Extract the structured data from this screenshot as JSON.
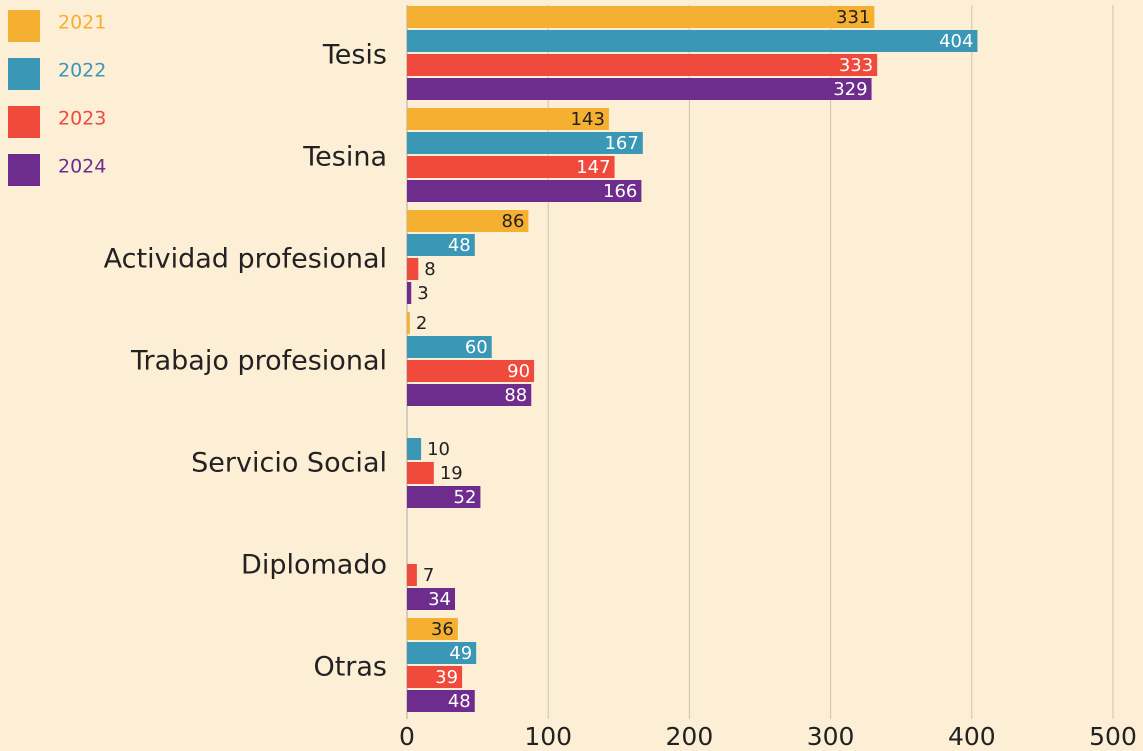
{
  "chart_data": {
    "type": "bar",
    "orientation": "horizontal",
    "categories": [
      "Tesis",
      "Tesina",
      "Actividad profesional",
      "Trabajo profesional",
      "Servicio Social",
      "Diplomado",
      "Otras"
    ],
    "series": [
      {
        "name": "2021",
        "color": "#f5b031",
        "values": [
          331,
          143,
          86,
          2,
          null,
          null,
          36
        ]
      },
      {
        "name": "2022",
        "color": "#3a97b6",
        "values": [
          404,
          167,
          48,
          60,
          10,
          null,
          49
        ]
      },
      {
        "name": "2023",
        "color": "#ef4a3c",
        "values": [
          333,
          147,
          8,
          90,
          19,
          7,
          39
        ]
      },
      {
        "name": "2024",
        "color": "#6e2c8d",
        "values": [
          329,
          166,
          3,
          88,
          52,
          34,
          48
        ]
      }
    ],
    "xlim": [
      0,
      500
    ],
    "xticks": [
      0,
      100,
      200,
      300,
      400,
      500
    ],
    "grid": true,
    "legend": "top-left"
  }
}
